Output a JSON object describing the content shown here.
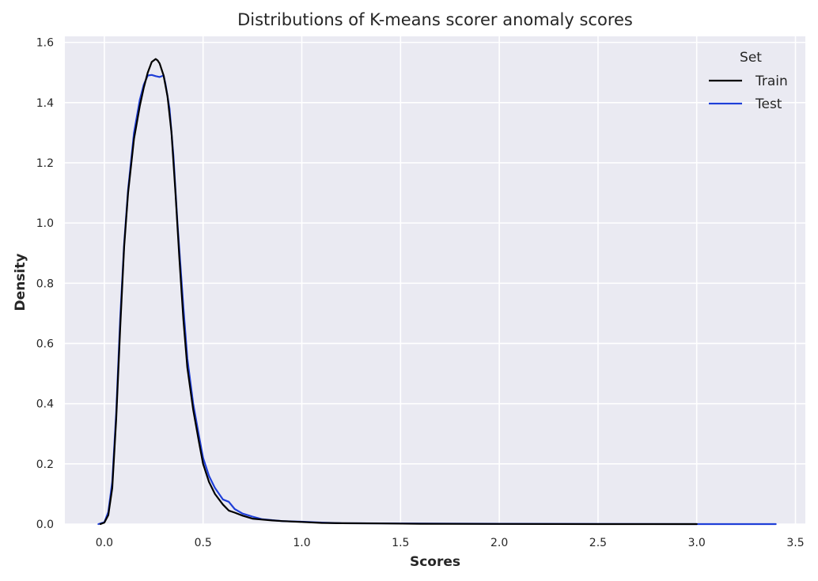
{
  "chart_data": {
    "type": "line",
    "title": "Distributions of K-means scorer anomaly scores",
    "xlabel": "Scores",
    "ylabel": "Density",
    "xlim": [
      -0.2,
      3.55
    ],
    "ylim": [
      0,
      1.62
    ],
    "xticks": [
      0.0,
      0.5,
      1.0,
      1.5,
      2.0,
      2.5,
      3.0,
      3.5
    ],
    "xtick_labels": [
      "0.0",
      "0.5",
      "1.0",
      "1.5",
      "2.0",
      "2.5",
      "3.0",
      "3.5"
    ],
    "yticks": [
      0.0,
      0.2,
      0.4,
      0.6,
      0.8,
      1.0,
      1.2,
      1.4,
      1.6
    ],
    "ytick_labels": [
      "0.0",
      "0.2",
      "0.4",
      "0.6",
      "0.8",
      "1.0",
      "1.2",
      "1.4",
      "1.6"
    ],
    "grid": true,
    "legend": {
      "title": "Set",
      "position": "top-right"
    },
    "series": [
      {
        "name": "Train",
        "color": "#000000",
        "x": [
          -0.02,
          0.0,
          0.02,
          0.04,
          0.06,
          0.08,
          0.1,
          0.12,
          0.15,
          0.18,
          0.2,
          0.22,
          0.24,
          0.26,
          0.27,
          0.28,
          0.3,
          0.32,
          0.34,
          0.36,
          0.38,
          0.4,
          0.42,
          0.45,
          0.48,
          0.5,
          0.53,
          0.56,
          0.6,
          0.63,
          0.66,
          0.7,
          0.75,
          0.8,
          0.85,
          0.9,
          1.0,
          1.1,
          1.2,
          1.4,
          1.6,
          2.0,
          2.5,
          3.0
        ],
        "y": [
          0.0,
          0.005,
          0.03,
          0.12,
          0.35,
          0.65,
          0.92,
          1.1,
          1.28,
          1.39,
          1.45,
          1.5,
          1.535,
          1.545,
          1.54,
          1.53,
          1.49,
          1.42,
          1.3,
          1.1,
          0.88,
          0.68,
          0.52,
          0.38,
          0.27,
          0.2,
          0.14,
          0.1,
          0.065,
          0.045,
          0.038,
          0.028,
          0.018,
          0.015,
          0.012,
          0.01,
          0.007,
          0.004,
          0.003,
          0.002,
          0.001,
          0.0005,
          0.0,
          0.0
        ]
      },
      {
        "name": "Test",
        "color": "#1f3fd8",
        "x": [
          -0.03,
          0.0,
          0.02,
          0.04,
          0.06,
          0.08,
          0.1,
          0.12,
          0.15,
          0.18,
          0.2,
          0.22,
          0.24,
          0.26,
          0.28,
          0.3,
          0.31,
          0.33,
          0.35,
          0.37,
          0.4,
          0.42,
          0.45,
          0.48,
          0.5,
          0.53,
          0.56,
          0.6,
          0.63,
          0.66,
          0.7,
          0.75,
          0.8,
          0.9,
          1.0,
          1.1,
          1.2,
          1.5,
          2.0,
          2.5,
          3.0,
          3.4
        ],
        "y": [
          0.0,
          0.006,
          0.04,
          0.14,
          0.37,
          0.68,
          0.93,
          1.11,
          1.3,
          1.41,
          1.46,
          1.49,
          1.492,
          1.488,
          1.485,
          1.49,
          1.46,
          1.38,
          1.22,
          1.0,
          0.72,
          0.55,
          0.4,
          0.29,
          0.22,
          0.16,
          0.12,
          0.082,
          0.074,
          0.05,
          0.035,
          0.025,
          0.016,
          0.01,
          0.008,
          0.005,
          0.003,
          0.002,
          0.001,
          0.0005,
          0.0,
          0.0
        ]
      }
    ]
  }
}
